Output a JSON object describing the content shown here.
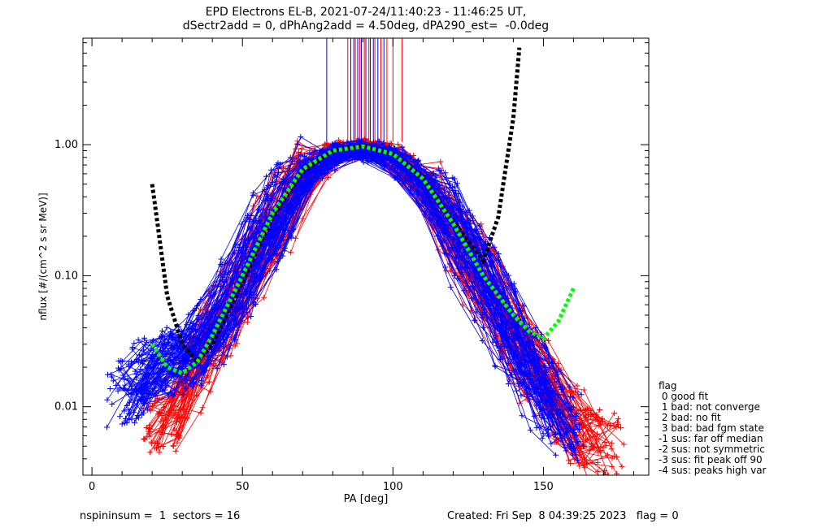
{
  "title_line1": "EPD Electrons EL-B, 2021-07-24/11:40:23 - 11:46:25 UT,",
  "title_line2": "dSectr2add = 0, dPhAng2add = 4.50deg, dPA290_est=  -0.0deg",
  "footer_left": "nspininsum =  1  sectors = 16",
  "footer_right": "Created: Fri Sep  8 04:39:25 2023   flag = 0",
  "legend": {
    "title": "flag",
    "items": [
      " 0 good fit",
      " 1 bad: not converge",
      " 2 bad: no fit",
      " 3 bad: bad fgm state",
      "-1 sus: far off median",
      "-2 sus: not symmetric",
      "-3 sus: fit peak off 90",
      "-4 sus: peaks high var"
    ]
  },
  "colors": {
    "red_series": "#ff0000",
    "blue_series": "#0000ff",
    "fit_black": "#000000",
    "fit_green": "#00ff00"
  },
  "chart_data": {
    "type": "line",
    "xlabel": "PA [deg]",
    "ylabel": "nflux [#/(cm^2 s sr MeV)]",
    "xlim": [
      -3,
      185
    ],
    "ylim": [
      0.003,
      6.5
    ],
    "yscale": "log",
    "xticks": [
      0,
      50,
      100,
      150
    ],
    "xtick_labels": [
      "0",
      "50",
      "100",
      "150"
    ],
    "yticks": [
      0.01,
      0.1,
      1.0
    ],
    "ytick_labels": [
      "0.01",
      "0.10",
      "1.00"
    ],
    "series": [
      {
        "color": "red",
        "x": [
          20,
          25,
          30,
          35,
          40,
          50,
          60,
          70,
          80,
          90,
          100,
          110,
          120,
          130,
          140,
          150,
          160,
          170
        ],
        "y": [
          0.006,
          0.009,
          0.013,
          0.02,
          0.035,
          0.09,
          0.25,
          0.55,
          0.88,
          0.97,
          0.82,
          0.52,
          0.22,
          0.09,
          0.035,
          0.015,
          0.007,
          0.005
        ]
      },
      {
        "color": "blue",
        "x": [
          8,
          15,
          20,
          25,
          30,
          35,
          40,
          50,
          60,
          70,
          80,
          90,
          100,
          110,
          120,
          130,
          140,
          150,
          160
        ],
        "y": [
          0.012,
          0.016,
          0.02,
          0.022,
          0.025,
          0.03,
          0.04,
          0.1,
          0.28,
          0.6,
          0.86,
          0.93,
          0.8,
          0.5,
          0.22,
          0.09,
          0.03,
          0.012,
          0.007
        ]
      },
      {
        "color": "green",
        "style": "dashed",
        "x": [
          20,
          25,
          30,
          35,
          40,
          50,
          60,
          70,
          80,
          90,
          100,
          110,
          120,
          130,
          140,
          145,
          150,
          155,
          160
        ],
        "y": [
          0.03,
          0.02,
          0.018,
          0.022,
          0.035,
          0.1,
          0.3,
          0.65,
          0.9,
          0.97,
          0.85,
          0.55,
          0.25,
          0.1,
          0.05,
          0.038,
          0.033,
          0.045,
          0.08
        ]
      },
      {
        "color": "black",
        "style": "dashed",
        "x": [
          20,
          25,
          30,
          35,
          40,
          50,
          60,
          70,
          80,
          90,
          100,
          110,
          120,
          130,
          135,
          140,
          142
        ],
        "y": [
          0.5,
          0.07,
          0.03,
          0.022,
          0.03,
          0.09,
          0.28,
          0.62,
          0.9,
          0.98,
          0.85,
          0.56,
          0.26,
          0.13,
          0.28,
          1.6,
          5.5
        ]
      }
    ]
  }
}
